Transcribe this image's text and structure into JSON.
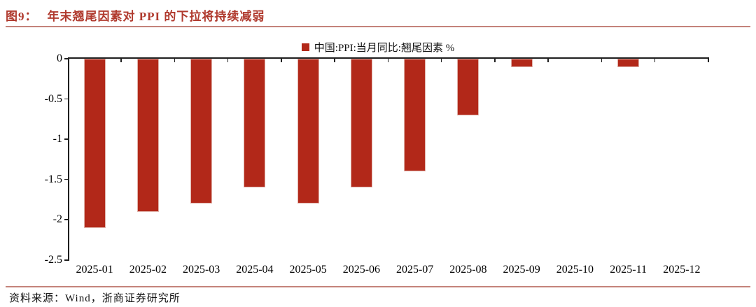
{
  "page": {
    "title_prefix": "图9：",
    "title": "年末翘尾因素对 PPI 的下拉将持续减弱",
    "source": "资料来源：Wind，浙商证券研究所"
  },
  "legend": {
    "marker": "square-icon",
    "label": "中国:PPI:当月同比:翘尾因素 %"
  },
  "colors": {
    "bar": "#B22819",
    "title_accent": "#B03A2E",
    "divider": "#C4837B",
    "axis": "#1F1F1F"
  },
  "chart_data": {
    "type": "bar",
    "title": "年末翘尾因素对 PPI 的下拉将持续减弱",
    "legend_entries": [
      "中国:PPI:当月同比:翘尾因素 %"
    ],
    "legend_position": "top-center",
    "categories": [
      "2025-01",
      "2025-02",
      "2025-03",
      "2025-04",
      "2025-05",
      "2025-06",
      "2025-07",
      "2025-08",
      "2025-09",
      "2025-10",
      "2025-11",
      "2025-12"
    ],
    "values": [
      -2.1,
      -1.9,
      -1.8,
      -1.6,
      -1.8,
      -1.6,
      -1.4,
      -0.7,
      -0.1,
      0,
      -0.1,
      0
    ],
    "xlabel": "",
    "ylabel": "",
    "ylim": [
      -2.5,
      0
    ],
    "yticks": [
      0,
      -0.5,
      -1,
      -1.5,
      -2,
      -2.5
    ],
    "ytick_labels": [
      "0",
      "-0.5",
      "-1",
      "-1.5",
      "-2",
      "-2.5"
    ],
    "grid": false,
    "bar_color": "#B22819"
  }
}
